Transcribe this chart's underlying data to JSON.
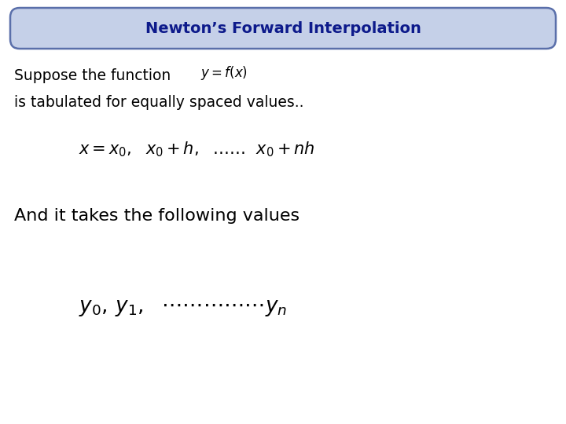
{
  "title": "Newton’s Forward Interpolation",
  "title_color": "#0d1a8b",
  "title_bg_color": "#c5d0e8",
  "title_border_color": "#5a6faa",
  "bg_color": "#ffffff",
  "text_color": "#000000",
  "line1_plain": "Suppose the function",
  "line1_math": "$y = f(x)$",
  "line2_plain": "is tabulated for equally spaced values..",
  "formula1": "$x = x_0,\\ \\ x_0+h,\\ \\ \\ldots\\ldots\\ \\ x_0+nh$",
  "line3_plain": "And it takes the following values",
  "formula2": "$y_0,\\,y_1,\\ \\ \\cdots\\cdots\\cdots\\cdots\\cdots y_n$"
}
